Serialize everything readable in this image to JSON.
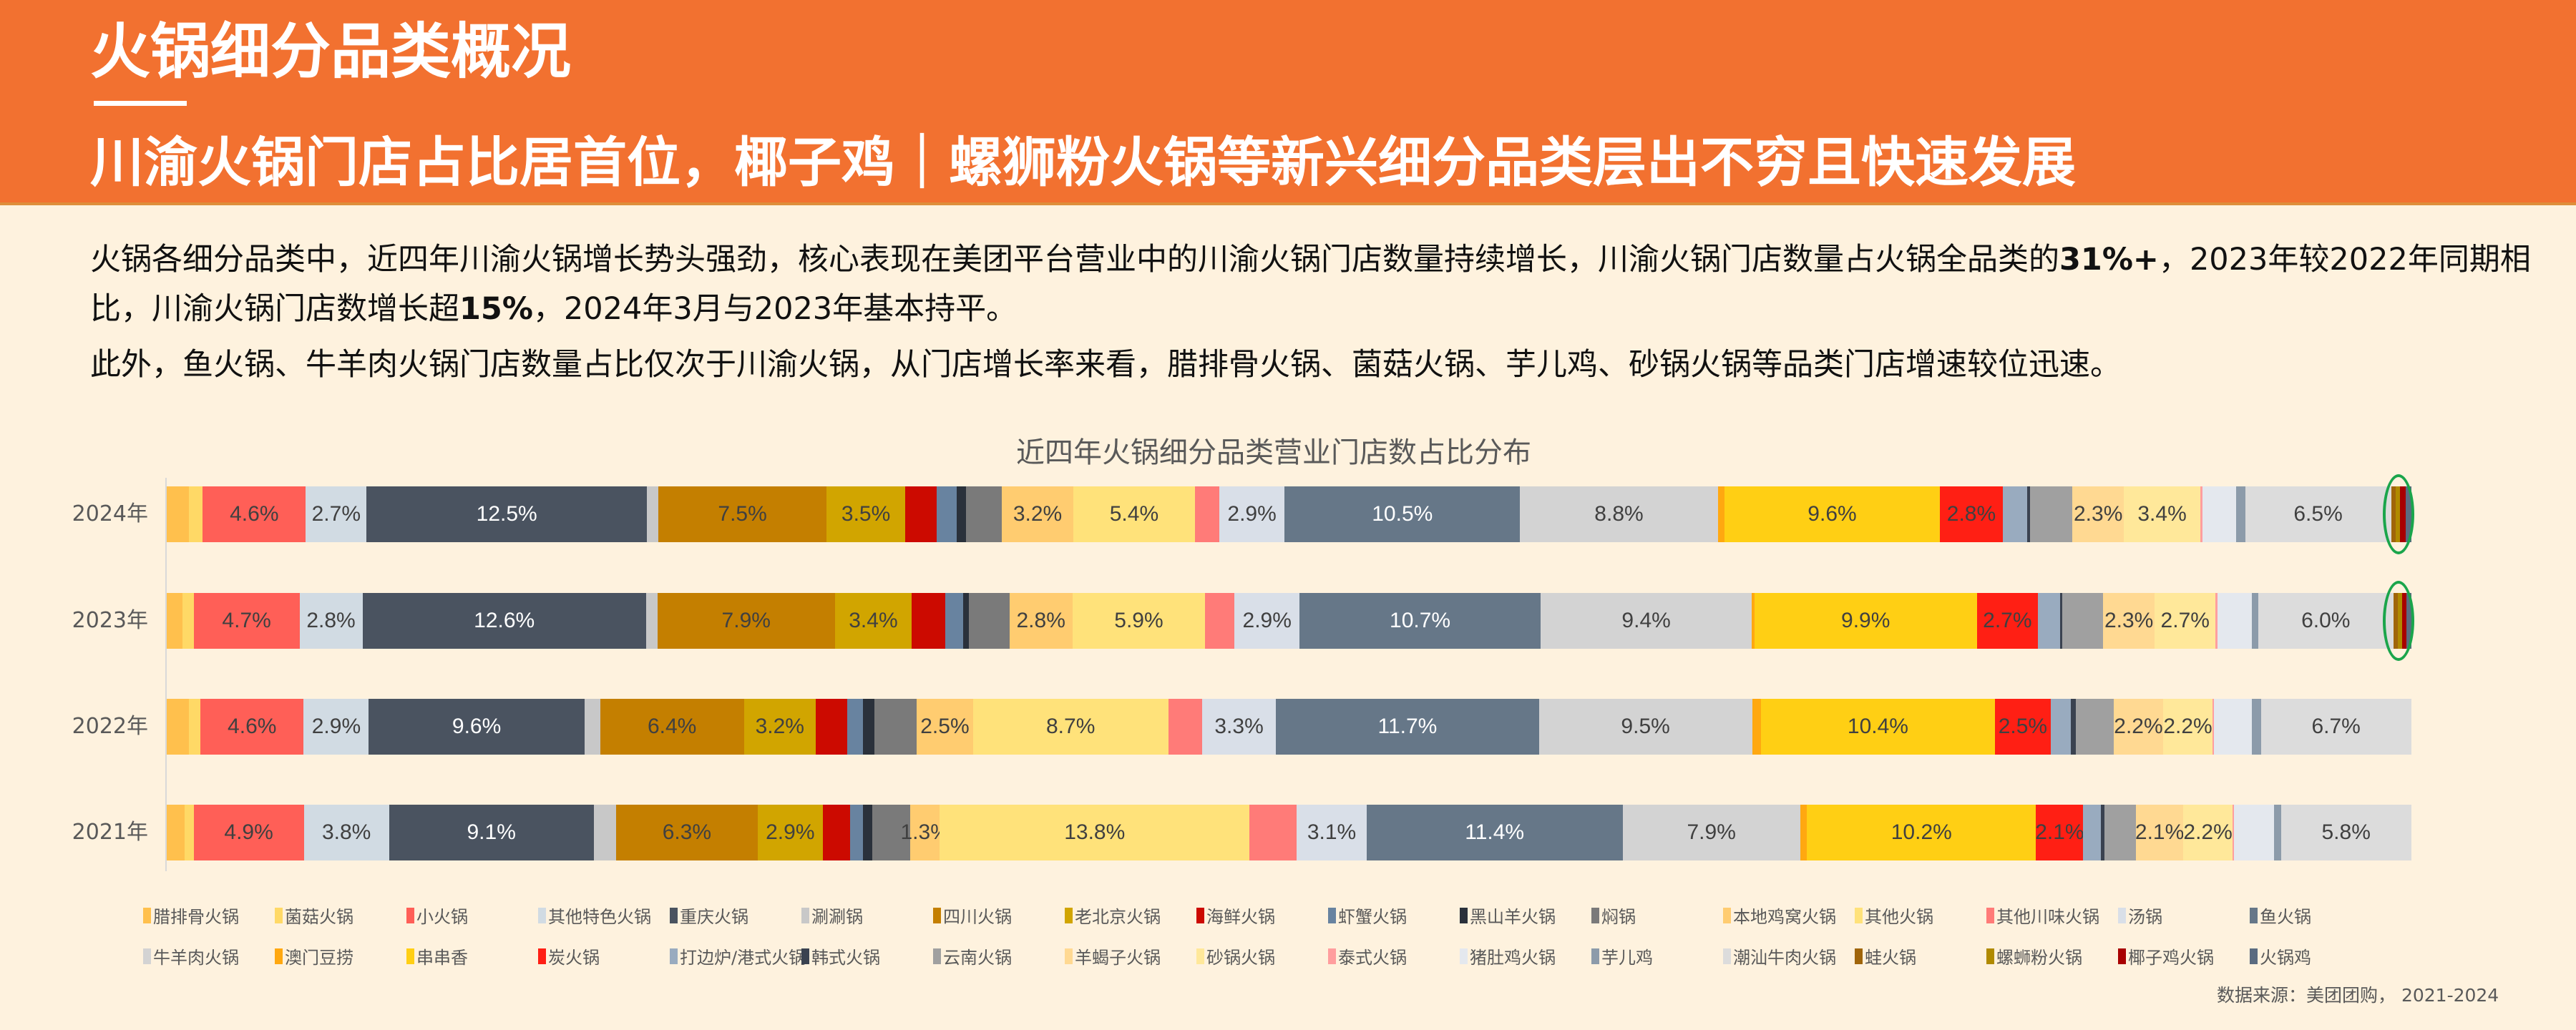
{
  "header": {
    "title": "火锅细分品类概况",
    "subtitle": "川渝火锅门店占比居首位，椰子鸡｜螺狮粉火锅等新兴细分品类层出不穷且快速发展"
  },
  "body": {
    "p1_a": "火锅各细分品类中，近四年川渝火锅增长势头强劲，核心表现在美团平台营业中的川渝火锅门店数量持续增长，川渝火锅门店数量占火锅全品类的",
    "p1_b": "31%+",
    "p1_c": "，2023年较2022年同期相比，川渝火锅门店数增长超",
    "p1_d": "15%",
    "p1_e": "，2024年3月与2023年基本持平。",
    "p2": "此外，鱼火锅、牛羊肉火锅门店数量占比仅次于川渝火锅，从门店增长率来看，腊排骨火锅、菌菇火锅、芋儿鸡、砂锅火锅等品类门店增速较位迅速。"
  },
  "source": "数据来源：美团团购， 2021-2024",
  "chart_data": {
    "type": "bar",
    "orientation": "horizontal-stacked-percent",
    "title": "近四年火锅细分品类营业门店数占比分布",
    "xlabel": "",
    "ylabel": "",
    "categories": [
      "2024年",
      "2023年",
      "2022年",
      "2021年"
    ],
    "unit": "%",
    "legend_position": "bottom",
    "grid": false,
    "highlight": {
      "categories": [
        "2024年",
        "2023年"
      ],
      "series": [
        "蛙火锅",
        "螺蛳粉火锅",
        "椰子鸡火锅",
        "火锅鸡"
      ],
      "color": "#1AA54B"
    },
    "series": [
      {
        "name": "腊排骨火锅",
        "color": "#FFC04D",
        "values": [
          1.0,
          0.7,
          1.0,
          0.8
        ],
        "labels": [
          "",
          "",
          "",
          ""
        ]
      },
      {
        "name": "菌菇火锅",
        "color": "#FFD966",
        "values": [
          0.6,
          0.5,
          0.5,
          0.4
        ],
        "labels": [
          "",
          "",
          "",
          ""
        ]
      },
      {
        "name": "小火锅",
        "color": "#FF5F57",
        "values": [
          4.6,
          4.7,
          4.6,
          4.9
        ],
        "labels": [
          "4.6%",
          "4.7%",
          "4.6%",
          "4.9%"
        ]
      },
      {
        "name": "其他特色火锅",
        "color": "#D1DBE3",
        "values": [
          2.7,
          2.8,
          2.9,
          3.8
        ],
        "labels": [
          "2.7%",
          "2.8%",
          "2.9%",
          "3.8%"
        ]
      },
      {
        "name": "重庆火锅",
        "color": "#4A5360",
        "values": [
          12.5,
          12.6,
          9.6,
          9.1
        ],
        "labels": [
          "12.5%",
          "12.6%",
          "9.6%",
          "9.1%"
        ]
      },
      {
        "name": "涮涮锅",
        "color": "#C8C8C8",
        "values": [
          0.5,
          0.5,
          0.7,
          1.0
        ],
        "labels": [
          "",
          "",
          "",
          ""
        ]
      },
      {
        "name": "四川火锅",
        "color": "#C47F00",
        "values": [
          7.5,
          7.9,
          6.4,
          6.3
        ],
        "labels": [
          "7.5%",
          "7.9%",
          "6.4%",
          "6.3%"
        ]
      },
      {
        "name": "老北京火锅",
        "color": "#D1A500",
        "values": [
          3.5,
          3.4,
          3.2,
          2.9
        ],
        "labels": [
          "3.5%",
          "3.4%",
          "3.2%",
          "2.9%"
        ]
      },
      {
        "name": "海鲜火锅",
        "color": "#CC0A00",
        "values": [
          1.4,
          1.5,
          1.4,
          1.2
        ],
        "labels": [
          "",
          "",
          "",
          ""
        ]
      },
      {
        "name": "虾蟹火锅",
        "color": "#6883A0",
        "values": [
          0.9,
          0.8,
          0.7,
          0.6
        ],
        "labels": [
          "",
          "",
          "",
          ""
        ]
      },
      {
        "name": "黑山羊火锅",
        "color": "#2A313B",
        "values": [
          0.4,
          0.25,
          0.5,
          0.4
        ],
        "labels": [
          "",
          "",
          "",
          ""
        ]
      },
      {
        "name": "焖锅",
        "color": "#7A7A7A",
        "values": [
          1.6,
          1.8,
          1.9,
          1.7
        ],
        "labels": [
          "",
          "",
          "",
          ""
        ]
      },
      {
        "name": "本地鸡窝火锅",
        "color": "#FFCC70",
        "values": [
          3.2,
          2.8,
          2.5,
          1.3
        ],
        "labels": [
          "3.2%",
          "2.8%",
          "2.5%",
          "1.3%"
        ]
      },
      {
        "name": "其他火锅",
        "color": "#FFE27A",
        "values": [
          5.4,
          5.9,
          8.7,
          13.8
        ],
        "labels": [
          "5.4%",
          "5.9%",
          "8.7%",
          "13.8%"
        ]
      },
      {
        "name": "其他川味火锅",
        "color": "#FF7B78",
        "values": [
          1.1,
          1.3,
          1.5,
          2.1
        ],
        "labels": [
          "",
          "",
          "",
          ""
        ]
      },
      {
        "name": "汤锅",
        "color": "#D9DFE8",
        "values": [
          2.9,
          2.9,
          3.3,
          3.1
        ],
        "labels": [
          "2.9%",
          "2.9%",
          "3.3%",
          "3.1%"
        ]
      },
      {
        "name": "鱼火锅",
        "color": "#667788",
        "values": [
          10.5,
          10.7,
          11.7,
          11.4
        ],
        "labels": [
          "10.5%",
          "10.7%",
          "11.7%",
          "11.4%"
        ]
      },
      {
        "name": "牛羊肉火锅",
        "color": "#D3D3D3",
        "values": [
          8.8,
          9.4,
          9.5,
          7.9
        ],
        "labels": [
          "8.8%",
          "9.4%",
          "9.5%",
          "7.9%"
        ]
      },
      {
        "name": "澳门豆捞",
        "color": "#FFA810",
        "values": [
          0.3,
          0.1,
          0.4,
          0.3
        ],
        "labels": [
          "",
          "",
          "",
          ""
        ]
      },
      {
        "name": "串串香",
        "color": "#FFCF14",
        "values": [
          9.6,
          9.9,
          10.4,
          10.2
        ],
        "labels": [
          "9.6%",
          "9.9%",
          "10.4%",
          "10.2%"
        ]
      },
      {
        "name": "炭火锅",
        "color": "#FF1F14",
        "values": [
          2.8,
          2.7,
          2.5,
          2.1
        ],
        "labels": [
          "2.8%",
          "2.7%",
          "2.5%",
          "2.1%"
        ]
      },
      {
        "name": "打边炉/港式火锅",
        "color": "#99ABBF",
        "values": [
          1.1,
          1.0,
          0.9,
          0.8
        ],
        "labels": [
          "",
          "",
          "",
          ""
        ]
      },
      {
        "name": "韩式火锅",
        "color": "#3A4250",
        "values": [
          0.1,
          0.1,
          0.2,
          0.15
        ],
        "labels": [
          "",
          "",
          "",
          ""
        ]
      },
      {
        "name": "云南火锅",
        "color": "#A0A0A0",
        "values": [
          1.9,
          1.8,
          1.7,
          1.4
        ],
        "labels": [
          "",
          "",
          "",
          ""
        ]
      },
      {
        "name": "羊蝎子火锅",
        "color": "#FFD992",
        "values": [
          2.3,
          2.3,
          2.2,
          2.1
        ],
        "labels": [
          "2.3%",
          "2.3%",
          "2.2%",
          "2.1%"
        ]
      },
      {
        "name": "砂锅火锅",
        "color": "#FFE89A",
        "values": [
          3.4,
          2.7,
          2.2,
          2.2
        ],
        "labels": [
          "3.4%",
          "2.7%",
          "2.2%",
          "2.2%"
        ]
      },
      {
        "name": "泰式火锅",
        "color": "#FF9E9E",
        "values": [
          0.1,
          0.1,
          0.05,
          0.05
        ],
        "labels": [
          "",
          "",
          "",
          ""
        ]
      },
      {
        "name": "猪肚鸡火锅",
        "color": "#E4E8EE",
        "values": [
          1.5,
          1.5,
          1.7,
          1.8
        ],
        "labels": [
          "",
          "",
          "",
          ""
        ]
      },
      {
        "name": "芋儿鸡",
        "color": "#8C9BAA",
        "values": [
          0.4,
          0.3,
          0.4,
          0.3
        ],
        "labels": [
          "",
          "",
          "",
          ""
        ]
      },
      {
        "name": "潮汕牛肉火锅",
        "color": "#DCDCDC",
        "values": [
          6.5,
          6.0,
          6.7,
          5.8
        ],
        "labels": [
          "6.5%",
          "6.0%",
          "6.7%",
          "5.8%"
        ]
      },
      {
        "name": "蛙火锅",
        "color": "#A0650A",
        "values": [
          0.2,
          0.2,
          0,
          0
        ],
        "labels": [
          "",
          "",
          "",
          ""
        ]
      },
      {
        "name": "螺蛳粉火锅",
        "color": "#B08A00",
        "values": [
          0.2,
          0.2,
          0,
          0
        ],
        "labels": [
          "",
          "",
          "",
          ""
        ]
      },
      {
        "name": "椰子鸡火锅",
        "color": "#A80000",
        "values": [
          0.25,
          0.2,
          0,
          0
        ],
        "labels": [
          "",
          "",
          "",
          ""
        ]
      },
      {
        "name": "火锅鸡",
        "color": "#5A6B80",
        "values": [
          0.25,
          0.2,
          0,
          0
        ],
        "labels": [
          "",
          "",
          "",
          ""
        ]
      }
    ]
  }
}
